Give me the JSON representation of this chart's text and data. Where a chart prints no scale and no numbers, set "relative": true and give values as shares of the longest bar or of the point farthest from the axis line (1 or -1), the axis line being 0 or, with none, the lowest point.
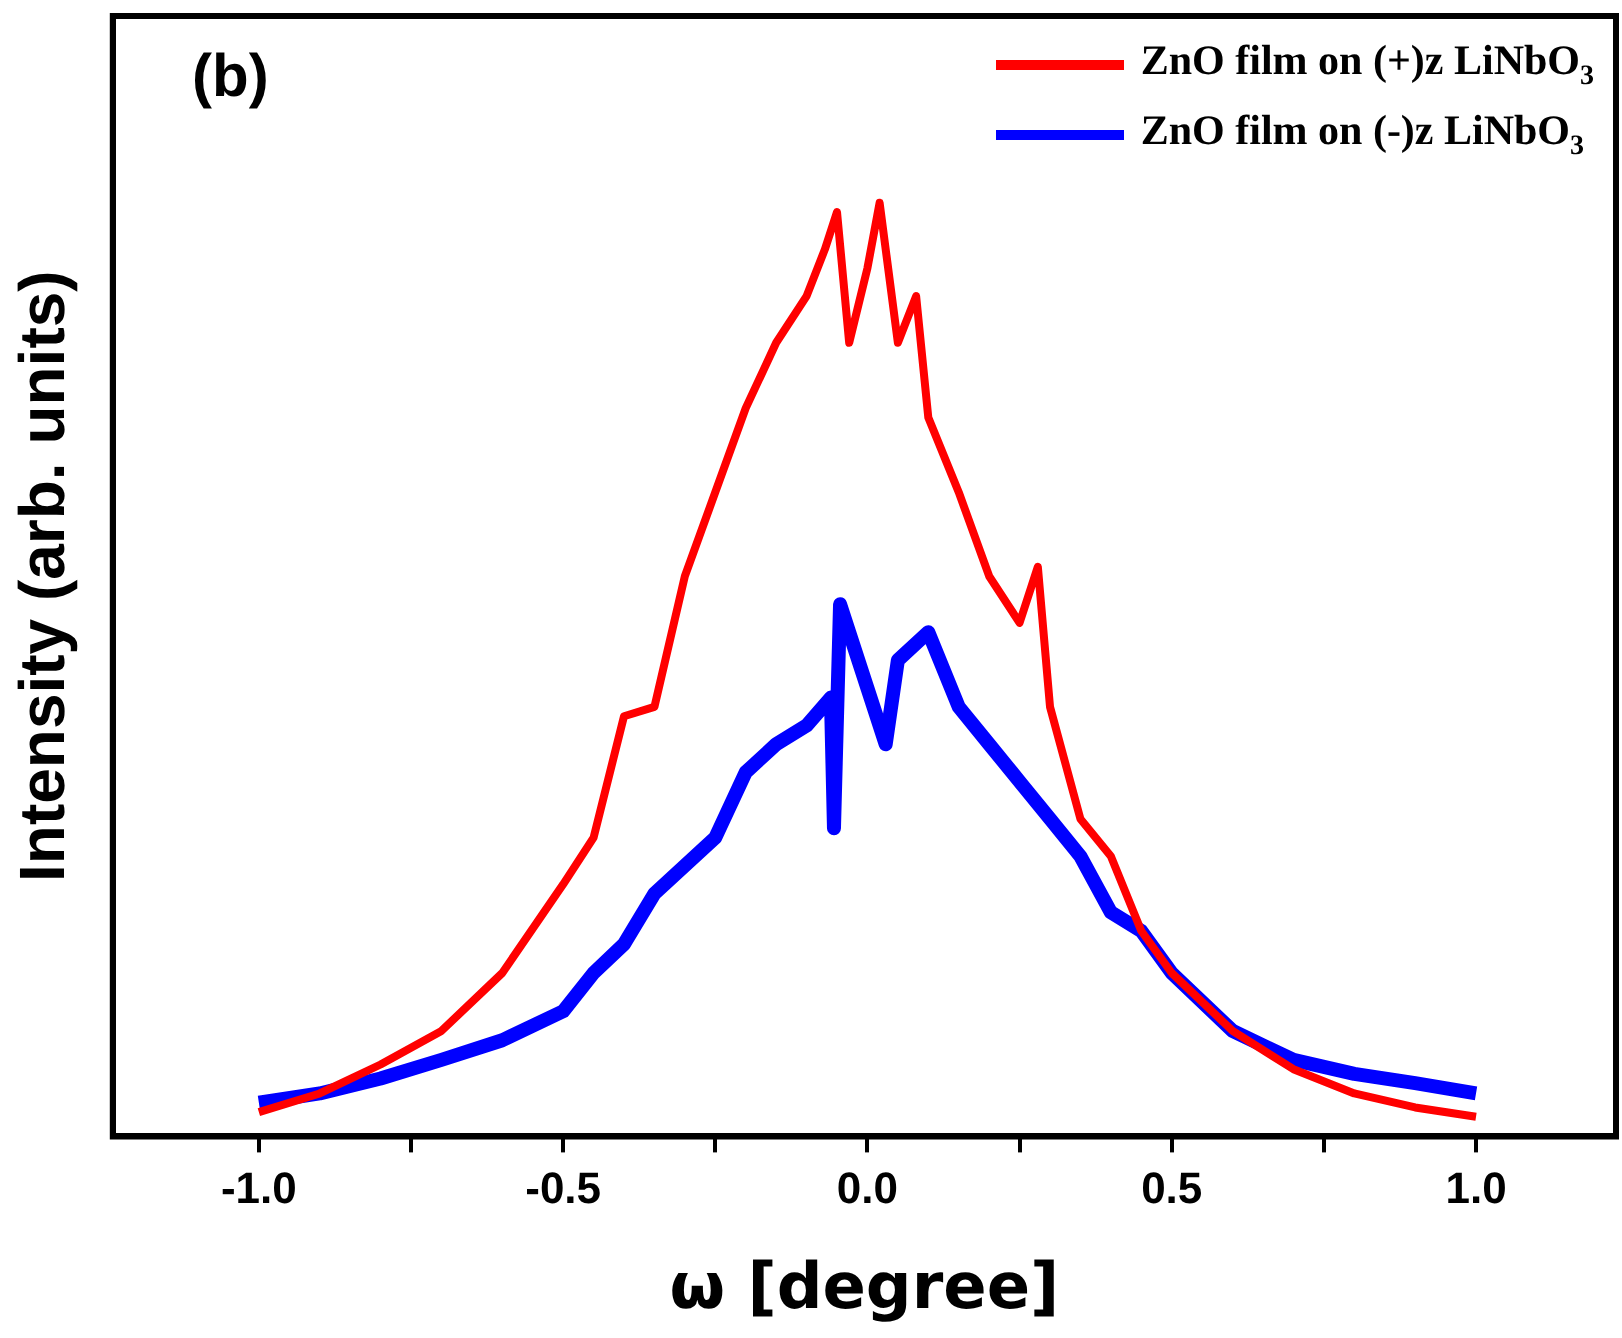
{
  "chart_data": {
    "type": "line",
    "title": "(b)",
    "xlabel": "ω [degree]",
    "ylabel": "Intensity (arb. units)",
    "relative": true,
    "legend": "top right",
    "grid": false,
    "marker": "none",
    "line_style": "solid",
    "xlim": [
      -1.24,
      1.23
    ],
    "xticks": [
      {
        "value": -1,
        "label": "-1.0"
      },
      {
        "value": -0.75,
        "label": null
      },
      {
        "value": -0.5,
        "label": "-0.5"
      },
      {
        "value": -0.25,
        "label": null
      },
      {
        "value": 0,
        "label": "0.0"
      },
      {
        "value": 0.25,
        "label": null
      },
      {
        "value": 0.5,
        "label": "0.5"
      },
      {
        "value": 0.75,
        "label": null
      },
      {
        "value": 1,
        "label": "1.0"
      }
    ],
    "series": [
      {
        "name": "ZnO film on (+)z LiNbO$_{3}$",
        "color": "#ff0000",
        "x": [
          -1.0,
          -0.9,
          -0.8,
          -0.7,
          -0.6,
          -0.5,
          -0.45,
          -0.4,
          -0.35,
          -0.3,
          -0.25,
          -0.2,
          -0.15,
          -0.1,
          -0.07,
          -0.05,
          -0.03,
          0.0,
          0.02,
          0.05,
          0.08,
          0.1,
          0.15,
          0.2,
          0.25,
          0.28,
          0.3,
          0.35,
          0.4,
          0.45,
          0.5,
          0.6,
          0.7,
          0.8,
          0.9,
          1.0
        ],
        "values": [
          0.026,
          0.046,
          0.077,
          0.113,
          0.175,
          0.27,
          0.32,
          0.45,
          0.46,
          0.6,
          0.69,
          0.78,
          0.85,
          0.9,
          0.95,
          0.99,
          0.85,
          0.93,
          1.0,
          0.85,
          0.9,
          0.77,
          0.69,
          0.6,
          0.55,
          0.61,
          0.46,
          0.34,
          0.3,
          0.22,
          0.175,
          0.113,
          0.072,
          0.046,
          0.031,
          0.021
        ]
      },
      {
        "name": "ZnO film on (-)z LiNbO$_{3}$",
        "color": "#0000ff",
        "x": [
          -1.0,
          -0.9,
          -0.8,
          -0.7,
          -0.6,
          -0.5,
          -0.45,
          -0.4,
          -0.35,
          -0.3,
          -0.25,
          -0.2,
          -0.15,
          -0.1,
          -0.06,
          -0.055,
          -0.045,
          0.0,
          0.03,
          0.05,
          0.1,
          0.15,
          0.2,
          0.25,
          0.3,
          0.35,
          0.4,
          0.45,
          0.5,
          0.6,
          0.7,
          0.8,
          0.9,
          1.0
        ],
        "values": [
          0.036,
          0.046,
          0.062,
          0.082,
          0.103,
          0.134,
          0.175,
          0.206,
          0.26,
          0.29,
          0.32,
          0.39,
          0.42,
          0.44,
          0.47,
          0.33,
          0.57,
          0.48,
          0.42,
          0.51,
          0.54,
          0.46,
          0.42,
          0.38,
          0.34,
          0.3,
          0.24,
          0.22,
          0.175,
          0.113,
          0.082,
          0.067,
          0.057,
          0.046
        ]
      }
    ]
  }
}
